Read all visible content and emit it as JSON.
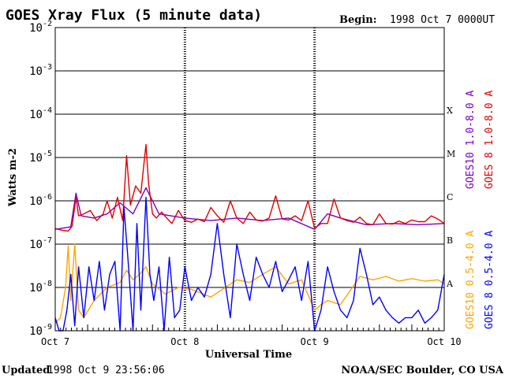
{
  "header": {
    "title": "GOES Xray Flux (5 minute data)",
    "begin_label": "Begin:",
    "begin_value": "1998 Oct 7 0000UT"
  },
  "footer": {
    "updated_label": "Updated",
    "updated_value": "1998 Oct  9 23:56:06",
    "credit": "NOAA/SEC Boulder, CO USA"
  },
  "colors": {
    "goes10_long": "#7a00c8",
    "goes8_long": "#e00000",
    "goes10_short": "#ffa500",
    "goes8_short": "#0000ff",
    "axis": "#000000"
  },
  "chart_data": {
    "type": "line",
    "title": "GOES Xray Flux (5 minute data)",
    "xlabel": "Universal Time",
    "ylabel": "Watts m-2",
    "x_ticks": [
      "Oct 7",
      "Oct 8",
      "Oct 9",
      "Oct 10"
    ],
    "xlim_days": [
      0,
      3
    ],
    "y_scale": "log",
    "ylim": [
      1e-09,
      0.01
    ],
    "y_ticks": [
      {
        "base": "10",
        "exp": "-9"
      },
      {
        "base": "10",
        "exp": "-8"
      },
      {
        "base": "10",
        "exp": "-7"
      },
      {
        "base": "10",
        "exp": "-6"
      },
      {
        "base": "10",
        "exp": "-5"
      },
      {
        "base": "10",
        "exp": "-4"
      },
      {
        "base": "10",
        "exp": "-3"
      },
      {
        "base": "10",
        "exp": "-2"
      }
    ],
    "flare_classes": [
      {
        "label": "A",
        "flux": 1e-08
      },
      {
        "label": "B",
        "flux": 1e-07
      },
      {
        "label": "C",
        "flux": 1e-06
      },
      {
        "label": "M",
        "flux": 1e-05
      },
      {
        "label": "X",
        "flux": 0.0001
      }
    ],
    "grid": true,
    "legend": "right-side vertical",
    "series": [
      {
        "name": "GOES10 1.0-8.0 A",
        "color": "#7a00c8",
        "band": "long",
        "x": [
          0.0,
          0.12,
          0.16,
          0.2,
          0.3,
          0.4,
          0.5,
          0.6,
          0.7,
          0.8,
          1.0,
          1.2,
          1.4,
          1.6,
          1.8,
          2.0,
          2.1,
          2.2,
          2.4,
          2.6,
          2.8,
          3.0
        ],
        "y": [
          2.2e-07,
          2.5e-07,
          1.5e-06,
          4.5e-07,
          4e-07,
          5e-07,
          9e-07,
          5e-07,
          2e-06,
          5e-07,
          4e-07,
          3.5e-07,
          4e-07,
          3.5e-07,
          4e-07,
          2.2e-07,
          5e-07,
          4e-07,
          2.8e-07,
          3e-07,
          2.8e-07,
          3e-07
        ]
      },
      {
        "name": "GOES 8 1.0-8.0 A",
        "color": "#e00000",
        "band": "long",
        "x": [
          0.0,
          0.05,
          0.1,
          0.13,
          0.16,
          0.18,
          0.22,
          0.27,
          0.32,
          0.37,
          0.4,
          0.44,
          0.48,
          0.52,
          0.55,
          0.58,
          0.62,
          0.66,
          0.7,
          0.72,
          0.75,
          0.78,
          0.82,
          0.86,
          0.9,
          0.95,
          1.0,
          1.05,
          1.1,
          1.15,
          1.2,
          1.25,
          1.3,
          1.35,
          1.4,
          1.45,
          1.5,
          1.55,
          1.6,
          1.65,
          1.7,
          1.75,
          1.8,
          1.85,
          1.9,
          1.95,
          2.0,
          2.05,
          2.1,
          2.15,
          2.2,
          2.25,
          2.3,
          2.35,
          2.4,
          2.45,
          2.5,
          2.55,
          2.6,
          2.65,
          2.7,
          2.75,
          2.8,
          2.85,
          2.9,
          2.95,
          3.0
        ],
        "y": [
          2.3e-07,
          2.1e-07,
          2e-07,
          2.6e-07,
          1.2e-06,
          4.5e-07,
          5e-07,
          6e-07,
          3.5e-07,
          5e-07,
          1e-06,
          4e-07,
          1.2e-06,
          3.5e-07,
          1.1e-05,
          8e-07,
          2.2e-06,
          1.5e-06,
          2e-05,
          2.5e-06,
          5e-07,
          4e-07,
          5.5e-07,
          4e-07,
          3e-07,
          6e-07,
          3.5e-07,
          3.2e-07,
          3.8e-07,
          3.3e-07,
          7e-07,
          4.5e-07,
          3.2e-07,
          1e-06,
          4e-07,
          3e-07,
          5.5e-07,
          3.6e-07,
          3.4e-07,
          4e-07,
          1.3e-06,
          3.8e-07,
          3.6e-07,
          4.5e-07,
          3.5e-07,
          1e-06,
          2.3e-07,
          3e-07,
          3e-07,
          1.1e-06,
          4e-07,
          3.5e-07,
          3.2e-07,
          4.2e-07,
          3e-07,
          2.8e-07,
          5e-07,
          3e-07,
          2.9e-07,
          3.4e-07,
          3e-07,
          3.6e-07,
          3.3e-07,
          3.3e-07,
          4.5e-07,
          3.8e-07,
          3e-07
        ]
      },
      {
        "name": "GOES10 0.5-4.0 A",
        "color": "#ffa500",
        "band": "short",
        "x": [
          0.0,
          0.04,
          0.08,
          0.1,
          0.12,
          0.15,
          0.18,
          0.22,
          0.3,
          0.4,
          0.5,
          0.55,
          0.6,
          0.65,
          0.7,
          0.75,
          0.85,
          0.95,
          1.05,
          1.2,
          1.4,
          1.5,
          1.6,
          1.7,
          1.8,
          1.9,
          2.0,
          2.05,
          2.1,
          2.2,
          2.35,
          2.45,
          2.55,
          2.65,
          2.75,
          2.85,
          2.95,
          3.0
        ],
        "y": [
          1.5e-09,
          2e-09,
          1e-08,
          9e-08,
          5e-09,
          1e-07,
          3e-09,
          2e-09,
          5e-09,
          1e-08,
          1.3e-08,
          2.5e-08,
          1.5e-08,
          2e-08,
          3e-08,
          1.2e-08,
          7e-09,
          1e-08,
          9e-09,
          6e-09,
          1.5e-08,
          1.3e-08,
          2e-08,
          3e-08,
          1.2e-08,
          1.5e-08,
          3e-09,
          4e-09,
          5e-09,
          4e-09,
          1.8e-08,
          1.5e-08,
          1.8e-08,
          1.4e-08,
          1.6e-08,
          1.4e-08,
          1.5e-08,
          1.2e-08
        ]
      },
      {
        "name": "GOES 8 0.5-4.0 A",
        "color": "#0000ff",
        "band": "short",
        "x": [
          0.0,
          0.03,
          0.06,
          0.09,
          0.12,
          0.15,
          0.18,
          0.22,
          0.26,
          0.3,
          0.34,
          0.38,
          0.42,
          0.46,
          0.5,
          0.53,
          0.56,
          0.6,
          0.63,
          0.66,
          0.7,
          0.73,
          0.76,
          0.8,
          0.84,
          0.88,
          0.92,
          0.96,
          1.0,
          1.05,
          1.1,
          1.15,
          1.2,
          1.25,
          1.3,
          1.35,
          1.4,
          1.45,
          1.5,
          1.55,
          1.6,
          1.65,
          1.7,
          1.75,
          1.8,
          1.85,
          1.9,
          1.95,
          2.0,
          2.05,
          2.1,
          2.15,
          2.2,
          2.25,
          2.3,
          2.35,
          2.4,
          2.45,
          2.5,
          2.55,
          2.6,
          2.65,
          2.7,
          2.75,
          2.8,
          2.85,
          2.9,
          2.95,
          3.0
        ],
        "y": [
          2e-09,
          1e-09,
          1e-09,
          3e-09,
          2e-08,
          1.3e-09,
          3e-08,
          2e-09,
          3e-08,
          5e-09,
          4e-08,
          3e-09,
          2e-08,
          4e-08,
          1e-09,
          7e-07,
          5e-08,
          1e-09,
          3e-07,
          3e-09,
          1.2e-06,
          2e-08,
          5e-09,
          3e-08,
          1e-09,
          5e-08,
          2e-09,
          3e-09,
          3e-08,
          5e-09,
          1e-08,
          6e-09,
          2e-08,
          3e-07,
          2e-08,
          2e-09,
          1e-07,
          2e-08,
          5e-09,
          5e-08,
          2e-08,
          1e-08,
          4e-08,
          8e-09,
          1.5e-08,
          3e-08,
          5e-09,
          4e-08,
          1e-09,
          3e-09,
          3e-08,
          8e-09,
          3e-09,
          2e-09,
          5e-09,
          8e-08,
          2e-08,
          4e-09,
          6e-09,
          3e-09,
          2e-09,
          1.5e-09,
          2e-09,
          2e-09,
          3e-09,
          1.5e-09,
          2e-09,
          3e-09,
          2e-08
        ]
      }
    ]
  }
}
